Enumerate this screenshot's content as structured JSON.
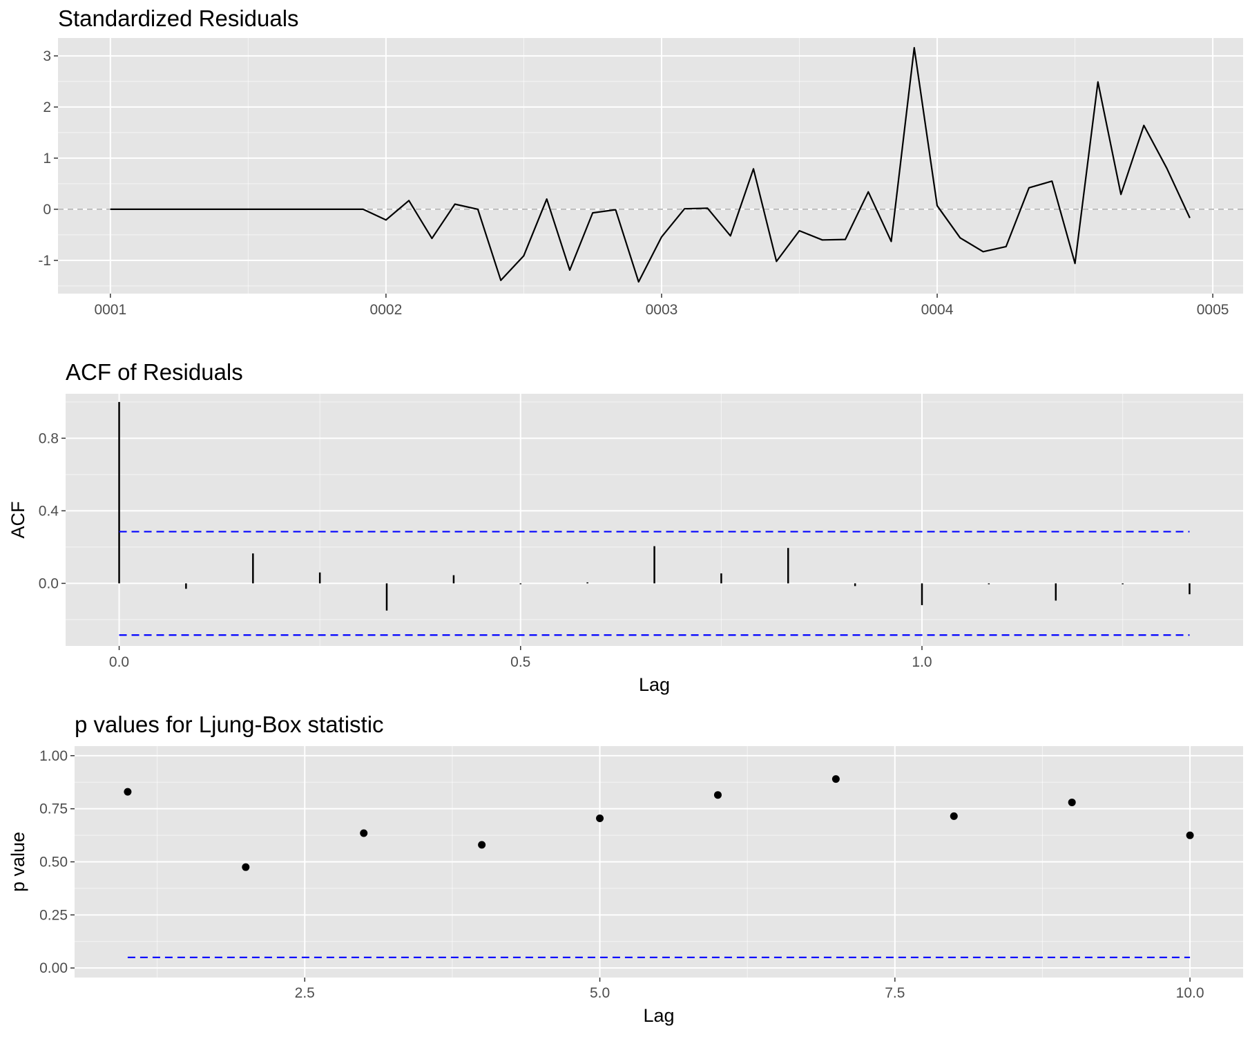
{
  "colors": {
    "panel_background": "#e5e5e5",
    "grid": "#ffffff",
    "line": "#000000",
    "bound": "#0000ff",
    "reference_line": "#aaaaaa",
    "tick_text": "#4d4d4d"
  },
  "chart_data": [
    {
      "type": "line",
      "title": "Standardized Residuals",
      "xlabel": "",
      "ylabel": "",
      "x_tick_labels": [
        "0001",
        "0002",
        "0003",
        "0004",
        "0005"
      ],
      "x_tick_values": [
        1,
        2,
        3,
        4,
        5
      ],
      "y_tick_labels": [
        "-1",
        "0",
        "1",
        "2",
        "3"
      ],
      "y_tick_values": [
        -1,
        0,
        1,
        2,
        3
      ],
      "xlim": [
        0.81,
        5.11
      ],
      "ylim": [
        -1.65,
        3.35
      ],
      "grid": true,
      "reference_line": {
        "y": 0,
        "style": "dashed"
      },
      "x": [
        1,
        1.0833,
        1.1667,
        1.25,
        1.3333,
        1.4167,
        1.5,
        1.5833,
        1.6667,
        1.75,
        1.8333,
        1.9167,
        2,
        2.0833,
        2.1667,
        2.25,
        2.3333,
        2.4167,
        2.5,
        2.5833,
        2.6667,
        2.75,
        2.8333,
        2.9167,
        3,
        3.0833,
        3.1667,
        3.25,
        3.3333,
        3.4167,
        3.5,
        3.5833,
        3.6667,
        3.75,
        3.8333,
        3.9167,
        4,
        4.0833,
        4.1667,
        4.25,
        4.3333,
        4.4167,
        4.5,
        4.5833,
        4.6667,
        4.75,
        4.8333,
        4.9167
      ],
      "values": [
        0.0,
        0.0,
        0.0,
        0.0,
        0.0,
        0.0,
        0.0,
        0.0,
        0.0,
        0.0,
        0.0,
        0.0,
        -0.21,
        0.17,
        -0.57,
        0.1,
        0.0,
        -1.39,
        -0.91,
        0.2,
        -1.19,
        -0.07,
        -0.01,
        -1.42,
        -0.54,
        0.01,
        0.02,
        -0.52,
        0.79,
        -1.02,
        -0.42,
        -0.6,
        -0.59,
        0.34,
        -0.63,
        3.16,
        0.07,
        -0.56,
        -0.83,
        -0.73,
        0.42,
        0.55,
        -1.06,
        2.49,
        0.29,
        1.64,
        0.8,
        -0.17
      ]
    },
    {
      "type": "bar",
      "title": "ACF of Residuals",
      "xlabel": "Lag",
      "ylabel": "ACF",
      "x_tick_labels": [
        "0.0",
        "0.5",
        "1.0"
      ],
      "x_tick_values": [
        0,
        0.5,
        1.0
      ],
      "y_tick_labels": [
        "0.0",
        "0.4",
        "0.8"
      ],
      "y_tick_values": [
        0,
        0.4,
        0.8
      ],
      "xlim": [
        -0.0667,
        1.4
      ],
      "ylim": [
        -0.345,
        1.045
      ],
      "grid": true,
      "confidence_bounds": [
        0.285,
        -0.285
      ],
      "bound_x_range": [
        0,
        1.3333
      ],
      "lags": [
        0,
        0.0833,
        0.1667,
        0.25,
        0.3333,
        0.4167,
        0.5,
        0.5833,
        0.6667,
        0.75,
        0.8333,
        0.9167,
        1.0,
        1.0833,
        1.1667,
        1.25,
        1.3333
      ],
      "values": [
        1.0,
        -0.03,
        0.165,
        0.06,
        -0.15,
        0.045,
        -0.005,
        0.0,
        0.205,
        0.055,
        0.195,
        -0.015,
        -0.12,
        -0.005,
        -0.095,
        -0.005,
        -0.06
      ]
    },
    {
      "type": "scatter",
      "title": "p values for Ljung-Box statistic",
      "xlabel": "Lag",
      "ylabel": "p value",
      "x_tick_labels": [
        "2.5",
        "5.0",
        "7.5",
        "10.0"
      ],
      "x_tick_values": [
        2.5,
        5.0,
        7.5,
        10.0
      ],
      "y_tick_labels": [
        "0.00",
        "0.25",
        "0.50",
        "0.75",
        "1.00"
      ],
      "y_tick_values": [
        0,
        0.25,
        0.5,
        0.75,
        1.0
      ],
      "xlim": [
        0.55,
        10.45
      ],
      "ylim": [
        -0.045,
        1.045
      ],
      "grid": true,
      "significance_line": 0.05,
      "x": [
        1,
        2,
        3,
        4,
        5,
        6,
        7,
        8,
        9,
        10
      ],
      "values": [
        0.83,
        0.475,
        0.635,
        0.58,
        0.705,
        0.815,
        0.89,
        0.715,
        0.78,
        0.625
      ]
    }
  ]
}
